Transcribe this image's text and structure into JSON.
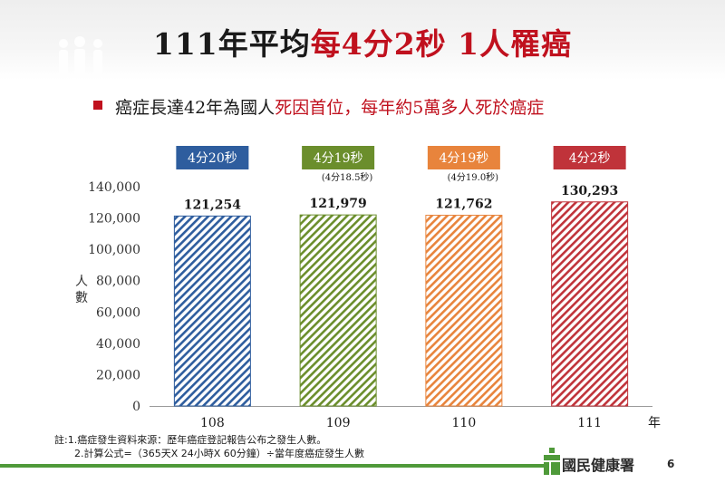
{
  "slide": {
    "title_prefix": "111年平均",
    "title_highlight": "每4分2秒 1人罹癌",
    "subtitle_prefix": "癌症長達42年為國人",
    "subtitle_highlight": "死因首位，每年約5萬多人死於癌症",
    "notes": [
      "註:1.癌症發生資料來源：歷年癌症登記報告公布之發生人數。",
      "2.計算公式=（365天X 24小時X 60分鐘）÷當年度癌症發生人數"
    ],
    "logo_text": "國民健康署",
    "page_number": "6"
  },
  "colors": {
    "accent_red": "#c0111e",
    "logo_green": "#4f9a3a"
  },
  "chart_data": {
    "type": "bar",
    "categories": [
      "108",
      "109",
      "110",
      "111"
    ],
    "values": [
      121254,
      121979,
      121762,
      130293
    ],
    "value_labels": [
      "121,254",
      "121,979",
      "121,762",
      "130,293"
    ],
    "badges": [
      "4分20秒",
      "4分19秒",
      "4分19秒",
      "4分2秒"
    ],
    "badge_notes": [
      "",
      "(4分18.5秒)",
      "(4分19.0秒)",
      ""
    ],
    "series_colors": [
      "#2e5d9e",
      "#6b8e2c",
      "#e8843c",
      "#c0333a"
    ],
    "badge_colors": [
      "#2e5d9e",
      "#6b8e2c",
      "#e8843c",
      "#c0333a"
    ],
    "ylabel": "人數",
    "xlabel": "年",
    "ylim": [
      0,
      140000
    ],
    "yticks": [
      "0",
      "20,000",
      "40,000",
      "60,000",
      "80,000",
      "100,000",
      "120,000",
      "140,000"
    ],
    "pattern": "diagonal-stripes",
    "grid": false
  }
}
